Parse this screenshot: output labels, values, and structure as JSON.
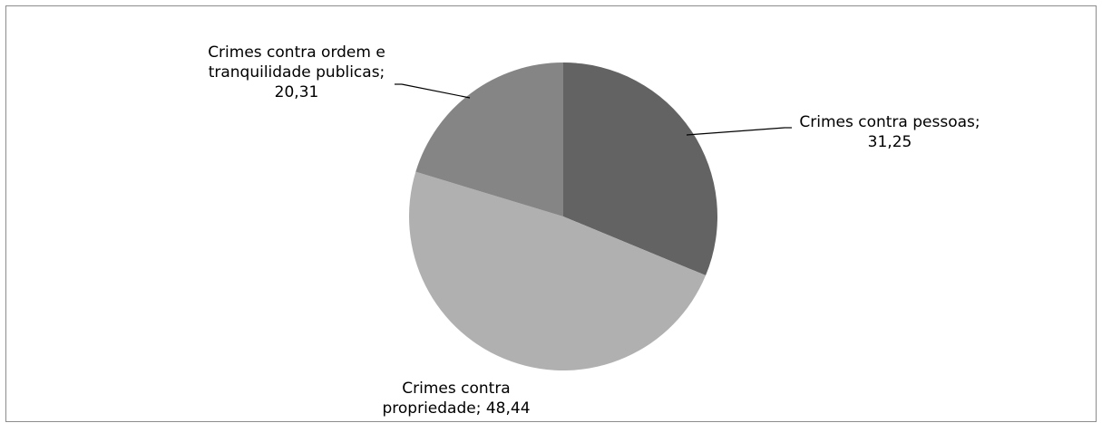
{
  "chart_data": {
    "type": "pie",
    "title": "",
    "categories": [
      "Crimes contra pessoas",
      "Crimes contra propriedade",
      "Crimes contra ordem e tranquilidade publicas"
    ],
    "values": [
      31.25,
      48.44,
      20.31
    ],
    "value_labels": [
      "31,25",
      "48,44",
      "20,31"
    ],
    "label_lines": [
      [
        "Crimes contra pessoas;",
        "31,25"
      ],
      [
        "Crimes contra",
        "propriedade; 48,44"
      ],
      [
        "Crimes contra ordem e",
        "tranquilidade publicas;",
        "20,31"
      ]
    ],
    "colors": [
      "#636363",
      "#b0b0b0",
      "#858585"
    ],
    "start_angle_deg": 0,
    "direction": "clockwise",
    "legend": "none",
    "labels_outside_with_leader_lines": true
  }
}
